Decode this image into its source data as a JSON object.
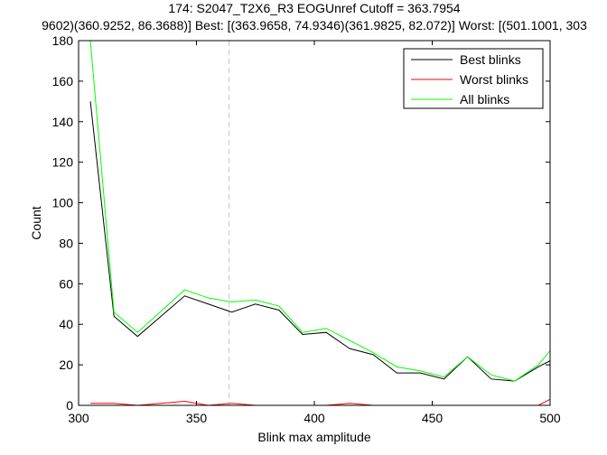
{
  "chart_data": {
    "type": "line",
    "title": "174: S2047_T2X6_R3 EOGUnref Cutoff = 363.7954",
    "subtitle": "9602)(360.9252, 86.3688)] Best: [(363.9658, 74.9346)(361.9825, 82.072)] Worst: [(501.1001, 303",
    "xlabel": "Blink max amplitude",
    "ylabel": "Count",
    "xlim": [
      300,
      500
    ],
    "ylim": [
      0,
      180
    ],
    "xticks": [
      "300",
      "350",
      "400",
      "450",
      "500"
    ],
    "yticks": [
      "0",
      "20",
      "40",
      "60",
      "80",
      "100",
      "120",
      "140",
      "160",
      "180"
    ],
    "grid": false,
    "legend": "top-right",
    "cutoff_x": 363.7954,
    "cutoff_color": "#c8c8c8",
    "x": [
      305,
      315,
      325,
      345,
      355,
      365,
      375,
      385,
      395,
      405,
      415,
      425,
      435,
      445,
      455,
      465,
      475,
      485,
      495,
      500
    ],
    "series": [
      {
        "name": "Best blinks",
        "color": "#000000",
        "values": [
          150,
          44,
          34,
          54,
          50,
          46,
          50,
          47,
          35,
          36,
          28,
          25,
          16,
          16,
          13,
          24,
          13,
          12,
          19,
          22
        ]
      },
      {
        "name": "Worst blinks",
        "color": "#ff0000",
        "values": [
          1,
          1,
          0,
          2,
          0,
          1,
          0,
          0,
          0,
          0,
          1,
          0,
          0,
          0,
          0,
          0,
          0,
          0,
          0,
          3
        ]
      },
      {
        "name": "All blinks",
        "color": "#00ff00",
        "values": [
          180,
          46,
          36,
          57,
          53,
          51,
          52,
          49,
          36,
          38,
          32,
          26,
          19,
          17,
          14,
          24,
          15,
          12,
          20,
          27
        ]
      }
    ]
  }
}
